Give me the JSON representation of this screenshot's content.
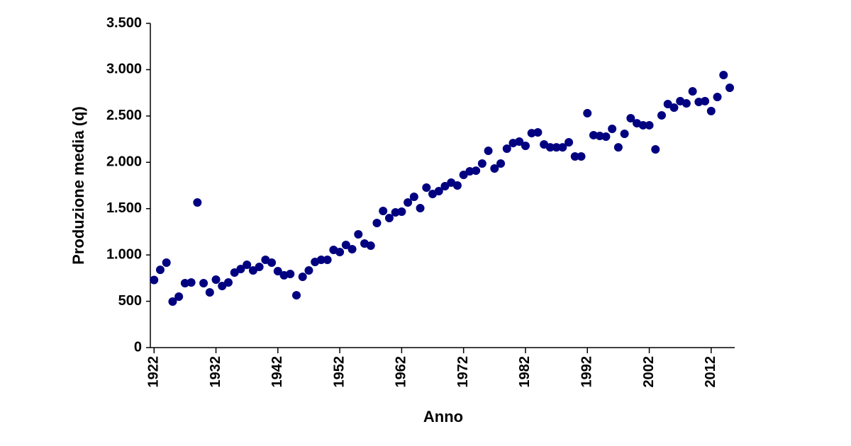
{
  "chart_data": {
    "type": "scatter",
    "x_label": "Anno",
    "y_label": "Produzione media (q)",
    "x": [
      1922,
      1923,
      1924,
      1925,
      1926,
      1927,
      1928,
      1929,
      1930,
      1931,
      1932,
      1933,
      1934,
      1935,
      1936,
      1937,
      1938,
      1939,
      1940,
      1941,
      1942,
      1943,
      1944,
      1945,
      1946,
      1947,
      1948,
      1949,
      1950,
      1951,
      1952,
      1953,
      1954,
      1955,
      1956,
      1957,
      1958,
      1959,
      1960,
      1961,
      1962,
      1963,
      1964,
      1965,
      1966,
      1967,
      1968,
      1969,
      1970,
      1971,
      1972,
      1973,
      1974,
      1975,
      1976,
      1977,
      1978,
      1979,
      1980,
      1981,
      1982,
      1983,
      1984,
      1985,
      1986,
      1987,
      1988,
      1989,
      1990,
      1991,
      1992,
      1993,
      1994,
      1995,
      1996,
      1997,
      1998,
      1999,
      2000,
      2001,
      2002,
      2003,
      2004,
      2005,
      2006,
      2007,
      2008,
      2009,
      2010,
      2011,
      2012,
      2013,
      2014,
      2015
    ],
    "values": [
      730,
      840,
      917,
      497,
      550,
      695,
      703,
      1567,
      695,
      596,
      734,
      665,
      703,
      810,
      848,
      894,
      833,
      871,
      948,
      917,
      825,
      780,
      795,
      565,
      764,
      833,
      925,
      948,
      948,
      1055,
      1032,
      1108,
      1062,
      1223,
      1123,
      1100,
      1345,
      1475,
      1398,
      1460,
      1467,
      1567,
      1628,
      1505,
      1727,
      1658,
      1689,
      1742,
      1781,
      1750,
      1865,
      1903,
      1910,
      1987,
      2124,
      1933,
      1987,
      2147,
      2208,
      2224,
      2178,
      2315,
      2323,
      2193,
      2162,
      2162,
      2162,
      2216,
      2063,
      2063,
      2530,
      2293,
      2285,
      2277,
      2361,
      2162,
      2308,
      2476,
      2422,
      2400,
      2400,
      2140,
      2507,
      2629,
      2591,
      2660,
      2636,
      2766,
      2652,
      2660,
      2553,
      2705,
      2942,
      2805
    ],
    "color": "#000080",
    "xlim": [
      1921.4,
      2015.8
    ],
    "xticks": [
      1922,
      1932,
      1942,
      1952,
      1962,
      1972,
      1982,
      1992,
      2002,
      2012
    ],
    "ylim": [
      0,
      3500
    ],
    "yticks": [
      0,
      500,
      {
        "value": 1000,
        "label": "1.000"
      },
      {
        "value": 1500,
        "label": "1.500"
      },
      {
        "value": 2000,
        "label": "2.000"
      },
      {
        "value": 2500,
        "label": "2.500"
      },
      {
        "value": 3000,
        "label": "3.000"
      },
      {
        "value": 3500,
        "label": "3.500"
      }
    ],
    "grid": false
  }
}
